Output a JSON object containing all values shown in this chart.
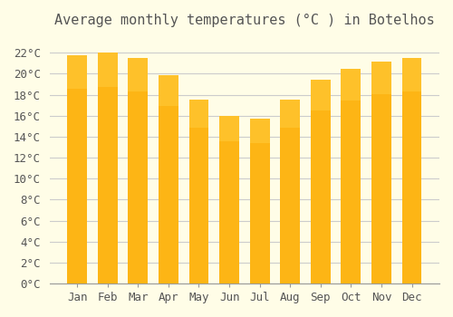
{
  "title": "Average monthly temperatures (°C ) in Botelhos",
  "months": [
    "Jan",
    "Feb",
    "Mar",
    "Apr",
    "May",
    "Jun",
    "Jul",
    "Aug",
    "Sep",
    "Oct",
    "Nov",
    "Dec"
  ],
  "values": [
    21.8,
    22.0,
    21.5,
    19.9,
    17.5,
    16.0,
    15.7,
    17.5,
    19.4,
    20.5,
    21.2,
    21.5
  ],
  "bar_color_main": "#FDB515",
  "bar_color_gradient_top": "#FFC733",
  "background_color": "#FFFDE7",
  "grid_color": "#CCCCCC",
  "text_color": "#555555",
  "ylim": [
    0,
    23.5
  ],
  "ytick_step": 2,
  "title_fontsize": 11,
  "tick_fontsize": 9,
  "font_family": "monospace"
}
